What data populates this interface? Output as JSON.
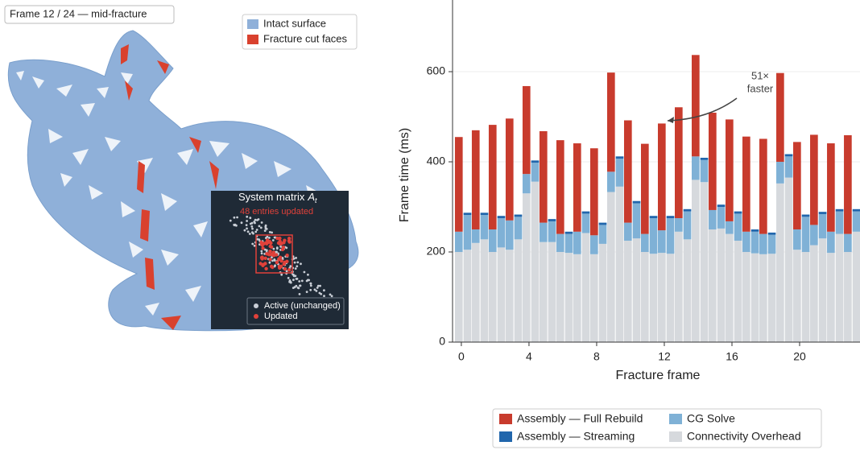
{
  "render": {
    "frame_label": "Frame 12 / 24 — mid-fracture",
    "legend": [
      {
        "name": "Intact surface",
        "color": "#8fb0d9"
      },
      {
        "name": "Fracture cut faces",
        "color": "#d9412e"
      }
    ],
    "inset": {
      "title": "System matrix",
      "symbol": "A",
      "subscript": "t",
      "subtitle": "48 entries updated",
      "legend": [
        {
          "name": "Active (unchanged)",
          "color": "#c9ced6"
        },
        {
          "name": "Updated",
          "color": "#e0413a"
        }
      ]
    }
  },
  "chart_data": {
    "type": "bar",
    "x": [
      0,
      1,
      2,
      3,
      4,
      5,
      6,
      7,
      8,
      9,
      10,
      11,
      12,
      13,
      14,
      15,
      16,
      17,
      18,
      19,
      20,
      21,
      22,
      23
    ],
    "stacks": [
      {
        "series": [
          {
            "name": "Connectivity Overhead",
            "color": "#d6d9dd",
            "values": [
              200,
              220,
              200,
              205,
              330,
              222,
              200,
              195,
              195,
              333,
              225,
              200,
              198,
              245,
              360,
              250,
              240,
              200,
              195,
              352,
              205,
              215,
              198,
              200
            ]
          },
          {
            "name": "CG Solve",
            "color": "#7fb1d6",
            "values": [
              45,
              30,
              50,
              65,
              43,
              43,
              40,
              50,
              42,
              45,
              40,
              40,
              50,
              30,
              52,
              43,
              28,
              45,
              45,
              48,
              45,
              45,
              47,
              40
            ]
          },
          {
            "name": "Assembly — Full Rebuild",
            "color": "#c83b2d",
            "values": [
              210,
              220,
              232,
              226,
              195,
              203,
              208,
              196,
              193,
              220,
              227,
              200,
              237,
              246,
              225,
              216,
              226,
              211,
              211,
              197,
              194,
              200,
              196,
              219
            ]
          }
        ]
      },
      {
        "series": [
          {
            "name": "Connectivity Overhead",
            "color": "#d6d9dd",
            "values": [
              205,
              228,
              210,
              228,
              356,
              222,
              198,
              242,
              218,
              345,
              230,
              196,
              196,
              228,
              355,
              252,
              225,
              197,
              196,
              365,
              200,
              230,
              240,
              245
            ]
          },
          {
            "name": "CG Solve",
            "color": "#7fb1d6",
            "values": [
              77,
              54,
              65,
              50,
              42,
              46,
              42,
              43,
              42,
              62,
              78,
              79,
              79,
              62,
              49,
              48,
              60,
              48,
              42,
              47,
              78,
              54,
              50,
              45
            ]
          },
          {
            "name": "Assembly — Streaming",
            "color": "#2166ac",
            "values": [
              5,
              5,
              5,
              5,
              5,
              5,
              5,
              5,
              5,
              5,
              5,
              5,
              5,
              5,
              5,
              5,
              5,
              5,
              5,
              5,
              5,
              5,
              5,
              5
            ]
          }
        ]
      }
    ],
    "xlabel": "Fracture frame",
    "ylabel": "Frame time (ms)",
    "xlim": [
      -0.52,
      23.57
    ],
    "ylim": [
      0,
      759
    ],
    "xticks": [
      0,
      4,
      8,
      12,
      16,
      20
    ],
    "yticks": [
      0,
      200,
      400,
      600
    ],
    "annotation": {
      "lines": [
        "51×",
        "faster"
      ],
      "x": 12
    }
  }
}
